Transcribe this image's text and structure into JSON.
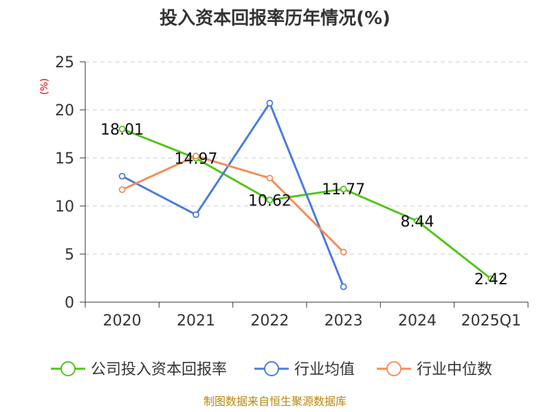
{
  "chart_data": {
    "type": "line",
    "title": "投入资本回报率历年情况(%)",
    "ylabel": "(%)",
    "categories": [
      "2020",
      "2021",
      "2022",
      "2023",
      "2024",
      "2025Q1"
    ],
    "ylim": [
      0,
      25
    ],
    "yticks": [
      "0",
      "5",
      "10",
      "15",
      "20",
      "25"
    ],
    "grid": true,
    "legend_position": "bottom",
    "series": [
      {
        "name": "公司投入资本回报率",
        "color": "#52c41a",
        "values": [
          18.01,
          14.97,
          10.62,
          11.77,
          8.44,
          2.42
        ],
        "labels": [
          "18.01",
          "14.97",
          "10.62",
          "11.77",
          "8.44",
          "2.42"
        ]
      },
      {
        "name": "行业均值",
        "color": "#4a7bdc",
        "values": [
          13.1,
          9.1,
          20.7,
          1.6,
          null,
          null
        ]
      },
      {
        "name": "行业中位数",
        "color": "#f58c5a",
        "values": [
          11.7,
          15.2,
          12.9,
          5.2,
          null,
          null
        ]
      }
    ]
  },
  "source": "制图数据来自恒生聚源数据库"
}
